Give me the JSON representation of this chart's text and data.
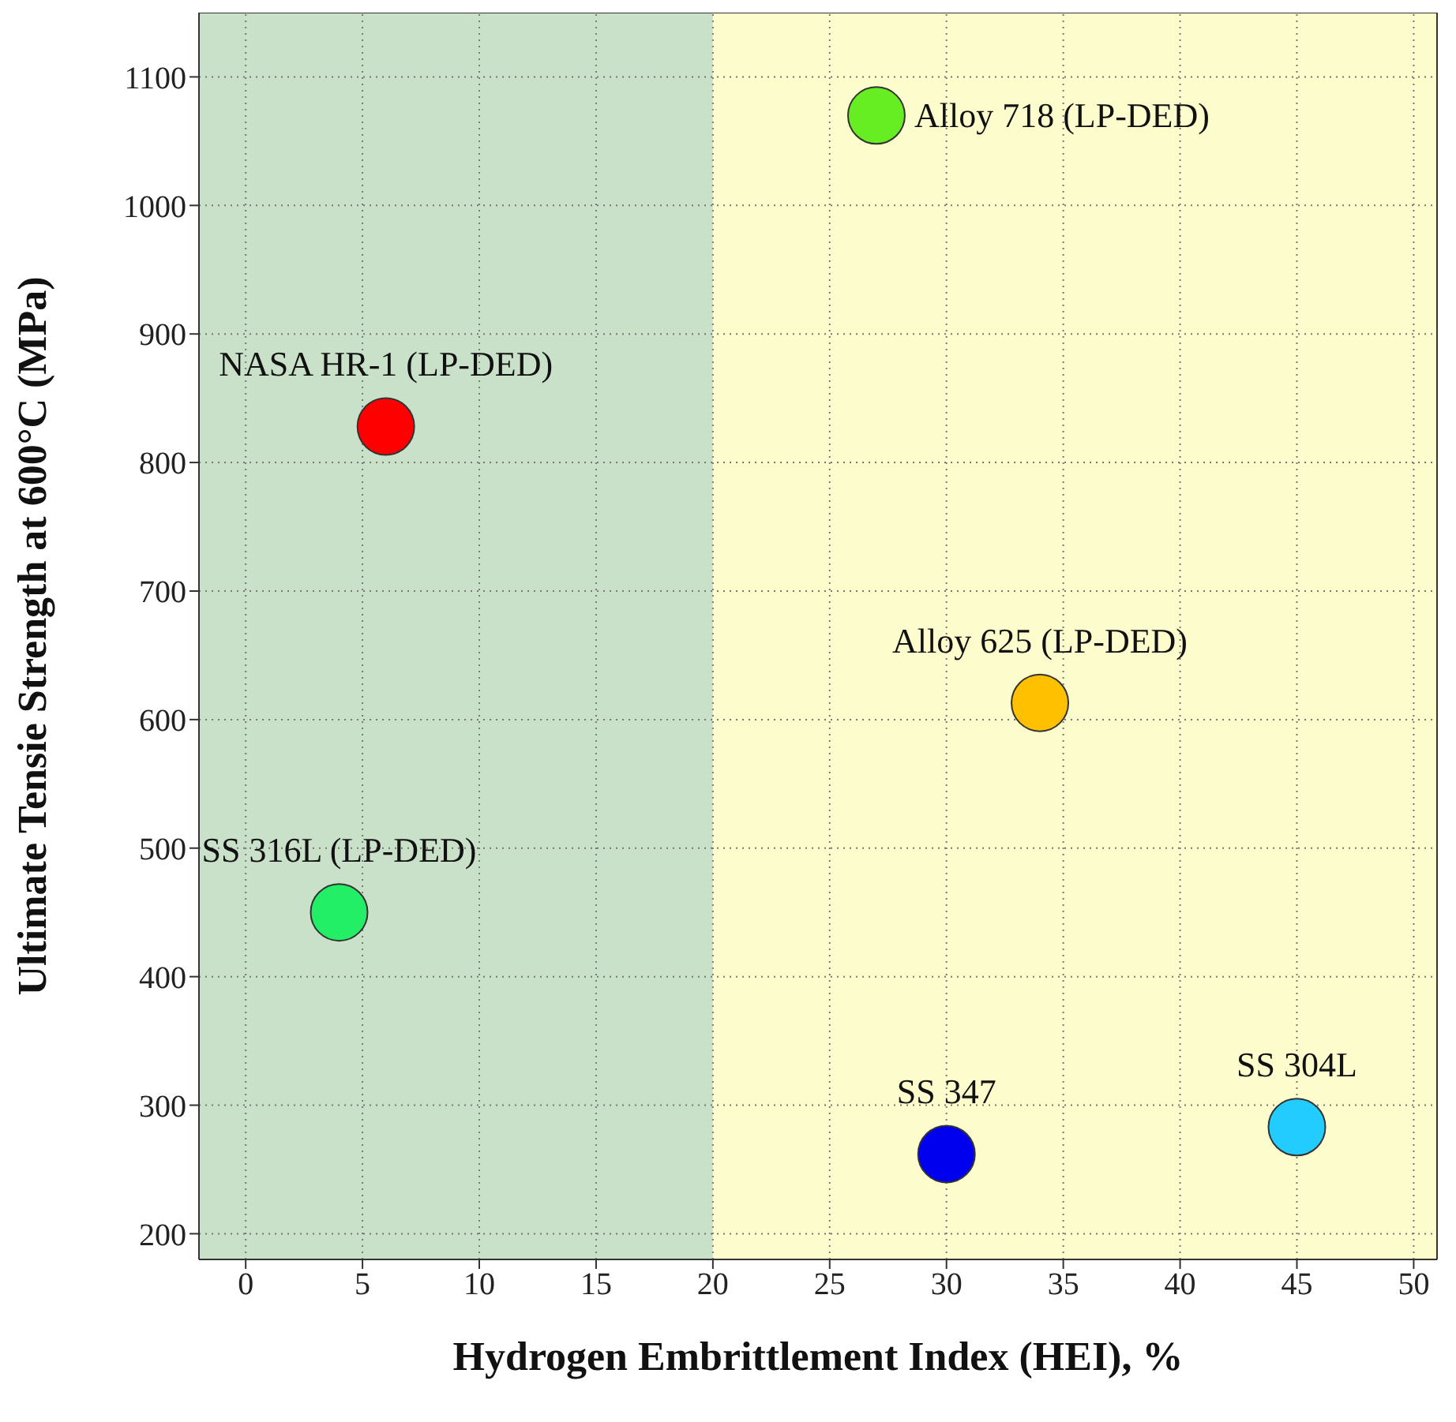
{
  "chart_data": {
    "type": "scatter",
    "xlabel": "Hydrogen Embrittlement Index (HEI), %",
    "ylabel": "Ultimate Tensie Strength at 600°C (MPa)",
    "series": [
      {
        "name": "NASA HR-1 (LP-DED)",
        "color": "#ff0000",
        "x": [
          6
        ],
        "values": [
          828
        ]
      },
      {
        "name": "Alloy 718 (LP-DED)",
        "color": "#66ee22",
        "x": [
          27
        ],
        "values": [
          1070
        ]
      },
      {
        "name": "Alloy 625 (LP-DED)",
        "color": "#ffc000",
        "x": [
          34
        ],
        "values": [
          613
        ]
      },
      {
        "name": "SS 316L (LP-DED)",
        "color": "#22ee66",
        "x": [
          4
        ],
        "values": [
          450
        ]
      },
      {
        "name": "SS 347",
        "color": "#0000ee",
        "x": [
          30
        ],
        "values": [
          262
        ]
      },
      {
        "name": "SS 304L",
        "color": "#22ccff",
        "x": [
          45
        ],
        "values": [
          283
        ]
      }
    ],
    "marker": "circle",
    "xlim": [
      -2,
      51
    ],
    "ylim": [
      180,
      1150
    ],
    "xticks": [
      0,
      5,
      10,
      15,
      20,
      25,
      30,
      35,
      40,
      45,
      50
    ],
    "yticks": [
      200,
      300,
      400,
      500,
      600,
      700,
      800,
      900,
      1000,
      1100
    ],
    "grid": true,
    "bands": [
      {
        "axis": "x",
        "from": -2,
        "to": 20,
        "color": "#c9e1c9"
      },
      {
        "axis": "x",
        "from": 20,
        "to": 51,
        "color": "#fdfccd"
      }
    ]
  }
}
